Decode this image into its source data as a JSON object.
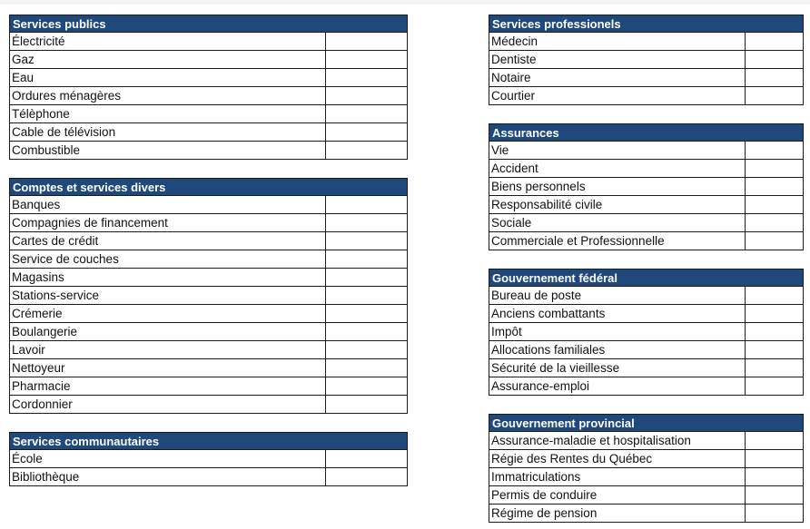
{
  "header_color": "#1f497d",
  "sections": [
    {
      "title": "Services publics",
      "items": [
        "Électricité",
        "Gaz",
        "Eau",
        "Ordures ménagères",
        "Télèphone",
        "Cable de télévision",
        "Combustible"
      ]
    },
    {
      "title": "Comptes et services divers",
      "items": [
        "Banques",
        "Compagnies de financement",
        "Cartes de crédit",
        "Service de couches",
        "Magasins",
        "Stations-service",
        "Crémerie",
        "Boulangerie",
        "Lavoir",
        "Nettoyeur",
        "Pharmacie",
        "Cordonnier"
      ]
    },
    {
      "title": "Services communautaires",
      "items": [
        "École",
        "Bibliothèque"
      ]
    },
    {
      "title": "Services professionels",
      "items": [
        "Médecin",
        "Dentiste",
        "Notaire",
        "Courtier"
      ]
    },
    {
      "title": "Assurances",
      "items": [
        "Vie",
        "Accident",
        "Biens personnels",
        "Responsabilité civile",
        "Sociale",
        "Commerciale et Professionnelle"
      ]
    },
    {
      "title": "Gouvernement fédéral",
      "items": [
        "Bureau de poste",
        "Anciens combattants",
        "Impôt",
        "Allocations familiales",
        "Sécurité de la vieillesse",
        "Assurance-emploi"
      ]
    },
    {
      "title": "Gouvernement provincial",
      "items": [
        "Assurance-maladie et hospitalisation",
        "Régie des Rentes du Québec",
        "Immatriculations",
        "Permis de conduire",
        "Régime de pension"
      ]
    }
  ]
}
